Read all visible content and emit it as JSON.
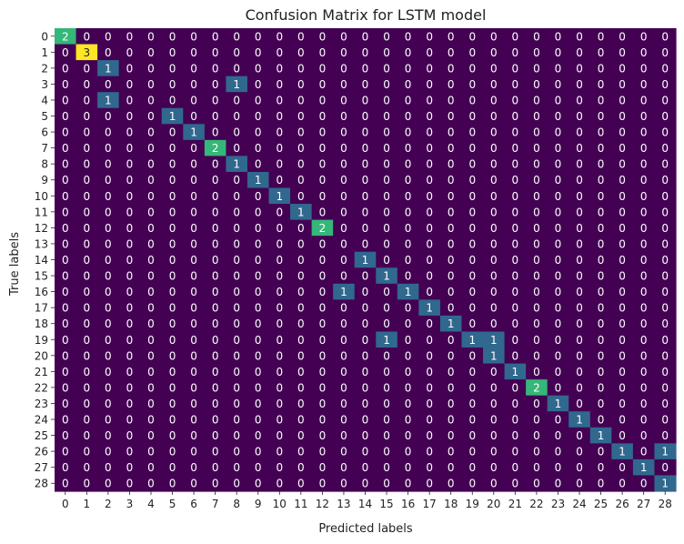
{
  "chart_data": {
    "type": "heatmap",
    "title": "Confusion Matrix for LSTM model",
    "xlabel": "Predicted labels",
    "ylabel": "True labels",
    "x_tick_labels": [
      "0",
      "1",
      "2",
      "3",
      "4",
      "5",
      "6",
      "7",
      "8",
      "9",
      "10",
      "11",
      "12",
      "13",
      "14",
      "15",
      "16",
      "17",
      "18",
      "19",
      "20",
      "21",
      "22",
      "23",
      "24",
      "25",
      "26",
      "27",
      "28"
    ],
    "y_tick_labels": [
      "0",
      "1",
      "2",
      "3",
      "4",
      "5",
      "6",
      "7",
      "8",
      "9",
      "10",
      "11",
      "12",
      "13",
      "14",
      "15",
      "16",
      "17",
      "18",
      "19",
      "20",
      "21",
      "22",
      "23",
      "24",
      "25",
      "26",
      "27",
      "28"
    ],
    "colormap": "viridis",
    "colorbar": false,
    "annotated": true,
    "value_range": [
      0,
      3
    ],
    "colors": {
      "zero": "#440154",
      "one": "#31688e",
      "two": "#35b779",
      "three": "#fde725",
      "annot_light": "#ffffff",
      "annot_dark": "#222222"
    },
    "matrix": [
      [
        2,
        0,
        0,
        0,
        0,
        0,
        0,
        0,
        0,
        0,
        0,
        0,
        0,
        0,
        0,
        0,
        0,
        0,
        0,
        0,
        0,
        0,
        0,
        0,
        0,
        0,
        0,
        0,
        0
      ],
      [
        0,
        3,
        0,
        0,
        0,
        0,
        0,
        0,
        0,
        0,
        0,
        0,
        0,
        0,
        0,
        0,
        0,
        0,
        0,
        0,
        0,
        0,
        0,
        0,
        0,
        0,
        0,
        0,
        0
      ],
      [
        0,
        0,
        1,
        0,
        0,
        0,
        0,
        0,
        0,
        0,
        0,
        0,
        0,
        0,
        0,
        0,
        0,
        0,
        0,
        0,
        0,
        0,
        0,
        0,
        0,
        0,
        0,
        0,
        0
      ],
      [
        0,
        0,
        0,
        0,
        0,
        0,
        0,
        0,
        1,
        0,
        0,
        0,
        0,
        0,
        0,
        0,
        0,
        0,
        0,
        0,
        0,
        0,
        0,
        0,
        0,
        0,
        0,
        0,
        0
      ],
      [
        0,
        0,
        1,
        0,
        0,
        0,
        0,
        0,
        0,
        0,
        0,
        0,
        0,
        0,
        0,
        0,
        0,
        0,
        0,
        0,
        0,
        0,
        0,
        0,
        0,
        0,
        0,
        0,
        0
      ],
      [
        0,
        0,
        0,
        0,
        0,
        1,
        0,
        0,
        0,
        0,
        0,
        0,
        0,
        0,
        0,
        0,
        0,
        0,
        0,
        0,
        0,
        0,
        0,
        0,
        0,
        0,
        0,
        0,
        0
      ],
      [
        0,
        0,
        0,
        0,
        0,
        0,
        1,
        0,
        0,
        0,
        0,
        0,
        0,
        0,
        0,
        0,
        0,
        0,
        0,
        0,
        0,
        0,
        0,
        0,
        0,
        0,
        0,
        0,
        0
      ],
      [
        0,
        0,
        0,
        0,
        0,
        0,
        0,
        2,
        0,
        0,
        0,
        0,
        0,
        0,
        0,
        0,
        0,
        0,
        0,
        0,
        0,
        0,
        0,
        0,
        0,
        0,
        0,
        0,
        0
      ],
      [
        0,
        0,
        0,
        0,
        0,
        0,
        0,
        0,
        1,
        0,
        0,
        0,
        0,
        0,
        0,
        0,
        0,
        0,
        0,
        0,
        0,
        0,
        0,
        0,
        0,
        0,
        0,
        0,
        0
      ],
      [
        0,
        0,
        0,
        0,
        0,
        0,
        0,
        0,
        0,
        1,
        0,
        0,
        0,
        0,
        0,
        0,
        0,
        0,
        0,
        0,
        0,
        0,
        0,
        0,
        0,
        0,
        0,
        0,
        0
      ],
      [
        0,
        0,
        0,
        0,
        0,
        0,
        0,
        0,
        0,
        0,
        1,
        0,
        0,
        0,
        0,
        0,
        0,
        0,
        0,
        0,
        0,
        0,
        0,
        0,
        0,
        0,
        0,
        0,
        0
      ],
      [
        0,
        0,
        0,
        0,
        0,
        0,
        0,
        0,
        0,
        0,
        0,
        1,
        0,
        0,
        0,
        0,
        0,
        0,
        0,
        0,
        0,
        0,
        0,
        0,
        0,
        0,
        0,
        0,
        0
      ],
      [
        0,
        0,
        0,
        0,
        0,
        0,
        0,
        0,
        0,
        0,
        0,
        0,
        2,
        0,
        0,
        0,
        0,
        0,
        0,
        0,
        0,
        0,
        0,
        0,
        0,
        0,
        0,
        0,
        0
      ],
      [
        0,
        0,
        0,
        0,
        0,
        0,
        0,
        0,
        0,
        0,
        0,
        0,
        0,
        0,
        0,
        0,
        0,
        0,
        0,
        0,
        0,
        0,
        0,
        0,
        0,
        0,
        0,
        0,
        0
      ],
      [
        0,
        0,
        0,
        0,
        0,
        0,
        0,
        0,
        0,
        0,
        0,
        0,
        0,
        0,
        1,
        0,
        0,
        0,
        0,
        0,
        0,
        0,
        0,
        0,
        0,
        0,
        0,
        0,
        0
      ],
      [
        0,
        0,
        0,
        0,
        0,
        0,
        0,
        0,
        0,
        0,
        0,
        0,
        0,
        0,
        0,
        1,
        0,
        0,
        0,
        0,
        0,
        0,
        0,
        0,
        0,
        0,
        0,
        0,
        0
      ],
      [
        0,
        0,
        0,
        0,
        0,
        0,
        0,
        0,
        0,
        0,
        0,
        0,
        0,
        1,
        0,
        0,
        1,
        0,
        0,
        0,
        0,
        0,
        0,
        0,
        0,
        0,
        0,
        0,
        0
      ],
      [
        0,
        0,
        0,
        0,
        0,
        0,
        0,
        0,
        0,
        0,
        0,
        0,
        0,
        0,
        0,
        0,
        0,
        1,
        0,
        0,
        0,
        0,
        0,
        0,
        0,
        0,
        0,
        0,
        0
      ],
      [
        0,
        0,
        0,
        0,
        0,
        0,
        0,
        0,
        0,
        0,
        0,
        0,
        0,
        0,
        0,
        0,
        0,
        0,
        1,
        0,
        0,
        0,
        0,
        0,
        0,
        0,
        0,
        0,
        0
      ],
      [
        0,
        0,
        0,
        0,
        0,
        0,
        0,
        0,
        0,
        0,
        0,
        0,
        0,
        0,
        0,
        1,
        0,
        0,
        0,
        1,
        1,
        0,
        0,
        0,
        0,
        0,
        0,
        0,
        0
      ],
      [
        0,
        0,
        0,
        0,
        0,
        0,
        0,
        0,
        0,
        0,
        0,
        0,
        0,
        0,
        0,
        0,
        0,
        0,
        0,
        0,
        1,
        0,
        0,
        0,
        0,
        0,
        0,
        0,
        0
      ],
      [
        0,
        0,
        0,
        0,
        0,
        0,
        0,
        0,
        0,
        0,
        0,
        0,
        0,
        0,
        0,
        0,
        0,
        0,
        0,
        0,
        0,
        1,
        0,
        0,
        0,
        0,
        0,
        0,
        0
      ],
      [
        0,
        0,
        0,
        0,
        0,
        0,
        0,
        0,
        0,
        0,
        0,
        0,
        0,
        0,
        0,
        0,
        0,
        0,
        0,
        0,
        0,
        0,
        2,
        0,
        0,
        0,
        0,
        0,
        0
      ],
      [
        0,
        0,
        0,
        0,
        0,
        0,
        0,
        0,
        0,
        0,
        0,
        0,
        0,
        0,
        0,
        0,
        0,
        0,
        0,
        0,
        0,
        0,
        0,
        1,
        0,
        0,
        0,
        0,
        0
      ],
      [
        0,
        0,
        0,
        0,
        0,
        0,
        0,
        0,
        0,
        0,
        0,
        0,
        0,
        0,
        0,
        0,
        0,
        0,
        0,
        0,
        0,
        0,
        0,
        0,
        1,
        0,
        0,
        0,
        0
      ],
      [
        0,
        0,
        0,
        0,
        0,
        0,
        0,
        0,
        0,
        0,
        0,
        0,
        0,
        0,
        0,
        0,
        0,
        0,
        0,
        0,
        0,
        0,
        0,
        0,
        0,
        1,
        0,
        0,
        0
      ],
      [
        0,
        0,
        0,
        0,
        0,
        0,
        0,
        0,
        0,
        0,
        0,
        0,
        0,
        0,
        0,
        0,
        0,
        0,
        0,
        0,
        0,
        0,
        0,
        0,
        0,
        0,
        1,
        0,
        1
      ],
      [
        0,
        0,
        0,
        0,
        0,
        0,
        0,
        0,
        0,
        0,
        0,
        0,
        0,
        0,
        0,
        0,
        0,
        0,
        0,
        0,
        0,
        0,
        0,
        0,
        0,
        0,
        0,
        1,
        0
      ],
      [
        0,
        0,
        0,
        0,
        0,
        0,
        0,
        0,
        0,
        0,
        0,
        0,
        0,
        0,
        0,
        0,
        0,
        0,
        0,
        0,
        0,
        0,
        0,
        0,
        0,
        0,
        0,
        0,
        1
      ]
    ]
  }
}
